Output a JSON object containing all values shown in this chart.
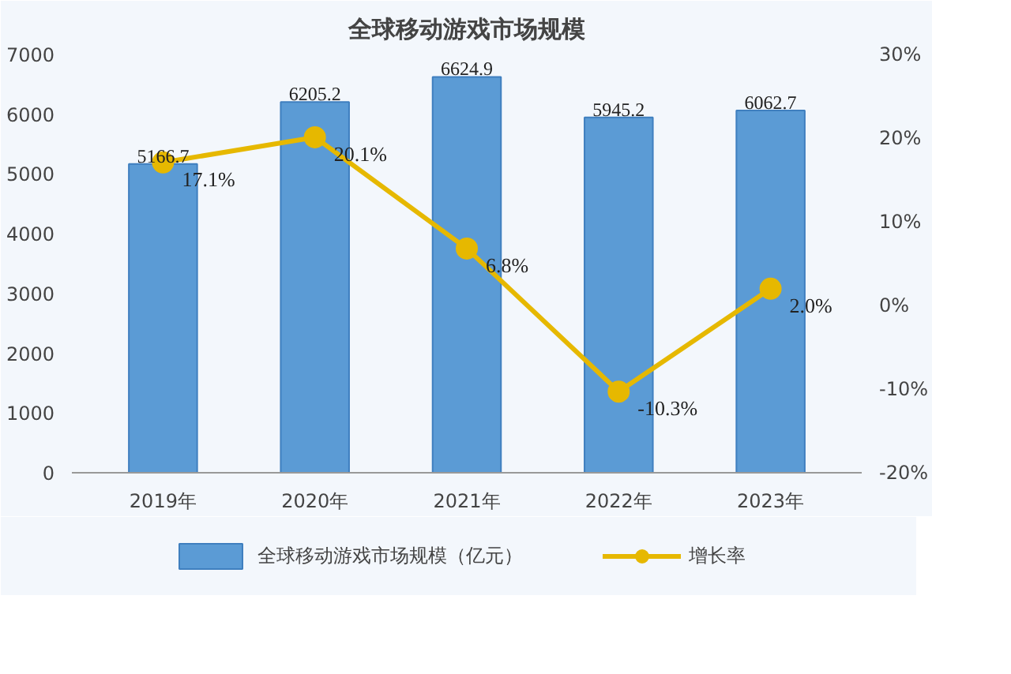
{
  "chart_data": {
    "type": "bar",
    "title": "全球移动游戏市场规模",
    "categories": [
      "2019年",
      "2020年",
      "2021年",
      "2022年",
      "2023年"
    ],
    "series": [
      {
        "name": "全球移动游戏市场规模（亿元）",
        "type": "bar",
        "color": "#5b9bd5",
        "values": [
          5166.7,
          6205.2,
          6624.9,
          5945.2,
          6062.7
        ],
        "value_labels": [
          "5166.7",
          "6205.2",
          "6624.9",
          "5945.2",
          "6062.7"
        ]
      },
      {
        "name": "增长率",
        "type": "line",
        "axis": "y2",
        "color": "#e6b800",
        "values": [
          17.1,
          20.1,
          6.8,
          -10.3,
          2.0
        ],
        "value_labels": [
          "17.1%",
          "20.1%",
          "6.8%",
          "-10.3%",
          "2.0%"
        ]
      }
    ],
    "ylim": [
      0,
      7000
    ],
    "yticks": [
      0,
      1000,
      2000,
      3000,
      4000,
      5000,
      6000,
      7000
    ],
    "y2lim": [
      -20,
      30
    ],
    "y2ticks": [
      {
        "value": -20,
        "label": "-20%"
      },
      {
        "value": -10,
        "label": "-10%"
      },
      {
        "value": 0,
        "label": "0%"
      },
      {
        "value": 10,
        "label": "10%"
      },
      {
        "value": 20,
        "label": "20%"
      },
      {
        "value": 30,
        "label": "30%"
      }
    ],
    "legend": "bottom",
    "marker": "circle",
    "grid": false
  }
}
